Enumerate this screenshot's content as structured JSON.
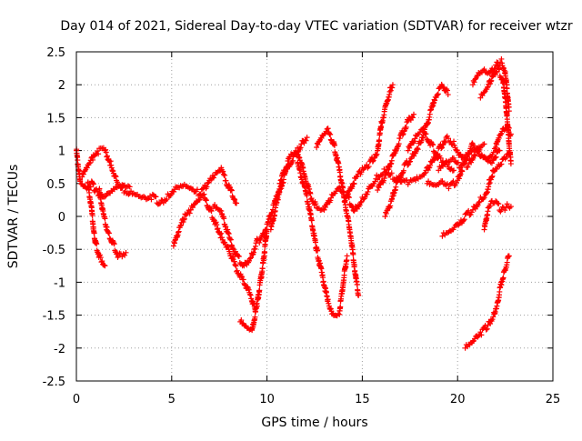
{
  "chart_data": {
    "type": "scatter",
    "title": "Day 014 of 2021, Sidereal Day-to-day VTEC variation (SDTVAR) for receiver wtzr",
    "xlabel": "GPS time / hours",
    "ylabel": "SDTVAR / TECUs",
    "xlim": [
      0,
      25
    ],
    "ylim": [
      -2.5,
      2.5
    ],
    "grid": true,
    "marker": "+",
    "xticks": [
      0,
      5,
      10,
      15,
      20,
      25
    ],
    "yticks": [
      2.5,
      2,
      1.5,
      1,
      0.5,
      0,
      -0.5,
      -1,
      -1.5,
      -2,
      -2.5
    ],
    "xtick_labels": [
      "0",
      "5",
      "10",
      "15",
      "20",
      "25"
    ],
    "ytick_labels": [
      "2.5",
      "2",
      "1.5",
      "1",
      "0.5",
      "0",
      "-0.5",
      "-1",
      "-1.5",
      "-2",
      "-2.5"
    ],
    "series": [
      {
        "name": "SDTVAR",
        "color": "#ff0000",
        "tracks": [
          [
            [
              0,
              1.0
            ],
            [
              0.2,
              0.5
            ],
            [
              0.5,
              0.4
            ],
            [
              0.8,
              0.5
            ],
            [
              1.0,
              0.4
            ],
            [
              1.3,
              0.3
            ],
            [
              1.6,
              0.35
            ],
            [
              2.0,
              0.45
            ],
            [
              2.4,
              0.5
            ],
            [
              2.8,
              0.45
            ]
          ],
          [
            [
              0.3,
              0.6
            ],
            [
              0.6,
              0.75
            ],
            [
              0.9,
              0.9
            ],
            [
              1.2,
              1.0
            ],
            [
              1.5,
              1.0
            ],
            [
              1.8,
              0.8
            ],
            [
              2.1,
              0.55
            ],
            [
              2.5,
              0.4
            ],
            [
              2.8,
              0.35
            ]
          ],
          [
            [
              0.6,
              0.5
            ],
            [
              0.8,
              0.1
            ],
            [
              0.9,
              -0.2
            ],
            [
              1.0,
              -0.4
            ],
            [
              1.2,
              -0.6
            ],
            [
              1.5,
              -0.75
            ]
          ],
          [
            [
              1.2,
              0.4
            ],
            [
              1.4,
              0.05
            ],
            [
              1.6,
              -0.2
            ],
            [
              1.9,
              -0.4
            ],
            [
              2.2,
              -0.6
            ],
            [
              2.6,
              -0.55
            ]
          ],
          [
            [
              2.8,
              0.35
            ],
            [
              3.2,
              0.3
            ],
            [
              3.6,
              0.25
            ],
            [
              4.0,
              0.3
            ],
            [
              4.4,
              0.2
            ],
            [
              4.8,
              0.3
            ],
            [
              5.2,
              0.45
            ],
            [
              5.6,
              0.5
            ],
            [
              6.0,
              0.45
            ],
            [
              6.4,
              0.35
            ],
            [
              6.8,
              0.45
            ],
            [
              7.2,
              0.6
            ],
            [
              7.6,
              0.7
            ],
            [
              8.0,
              0.45
            ],
            [
              8.4,
              0.2
            ]
          ],
          [
            [
              6.0,
              0.1
            ],
            [
              6.3,
              0.2
            ],
            [
              6.7,
              0.3
            ],
            [
              7.0,
              0.1
            ],
            [
              7.3,
              -0.1
            ],
            [
              7.6,
              -0.3
            ],
            [
              8.0,
              -0.5
            ],
            [
              8.4,
              -0.8
            ],
            [
              8.8,
              -1.0
            ],
            [
              9.2,
              -1.25
            ],
            [
              9.4,
              -1.45
            ]
          ],
          [
            [
              7.2,
              0.15
            ],
            [
              7.6,
              0.05
            ],
            [
              8.0,
              -0.3
            ],
            [
              8.4,
              -0.6
            ],
            [
              8.8,
              -0.75
            ],
            [
              9.2,
              -0.6
            ],
            [
              9.5,
              -0.35
            ]
          ],
          [
            [
              5.1,
              -0.45
            ],
            [
              5.4,
              -0.2
            ],
            [
              5.7,
              0.0
            ],
            [
              6.0,
              0.1
            ]
          ],
          [
            [
              8.6,
              -1.6
            ],
            [
              8.9,
              -1.7
            ],
            [
              9.2,
              -1.75
            ],
            [
              9.5,
              -1.3
            ],
            [
              9.8,
              -0.7
            ],
            [
              10.0,
              -0.2
            ]
          ],
          [
            [
              9.6,
              -0.4
            ],
            [
              10.0,
              -0.15
            ],
            [
              10.4,
              0.2
            ],
            [
              10.8,
              0.6
            ],
            [
              11.2,
              0.9
            ],
            [
              11.6,
              1.0
            ],
            [
              12.0,
              0.6
            ],
            [
              12.3,
              0.3
            ],
            [
              12.6,
              0.15
            ],
            [
              13.0,
              0.1
            ]
          ],
          [
            [
              10.2,
              -0.2
            ],
            [
              10.6,
              0.3
            ],
            [
              11.0,
              0.7
            ],
            [
              11.4,
              0.9
            ],
            [
              11.8,
              1.1
            ],
            [
              12.1,
              1.2
            ]
          ],
          [
            [
              11.6,
              0.8
            ],
            [
              12.0,
              0.4
            ],
            [
              12.3,
              0.0
            ],
            [
              12.6,
              -0.5
            ],
            [
              12.9,
              -0.9
            ],
            [
              13.2,
              -1.3
            ],
            [
              13.5,
              -1.5
            ],
            [
              13.8,
              -1.45
            ],
            [
              14.0,
              -1.0
            ],
            [
              14.2,
              -0.6
            ]
          ],
          [
            [
              12.6,
              1.05
            ],
            [
              12.9,
              1.2
            ],
            [
              13.2,
              1.3
            ],
            [
              13.5,
              1.1
            ],
            [
              13.8,
              0.7
            ],
            [
              14.1,
              0.2
            ],
            [
              14.4,
              -0.3
            ],
            [
              14.6,
              -0.8
            ],
            [
              14.8,
              -1.2
            ]
          ],
          [
            [
              13.0,
              0.1
            ],
            [
              13.4,
              0.3
            ],
            [
              13.8,
              0.4
            ],
            [
              14.2,
              0.3
            ],
            [
              14.6,
              0.1
            ],
            [
              15.0,
              0.25
            ],
            [
              15.4,
              0.45
            ],
            [
              15.8,
              0.6
            ],
            [
              16.2,
              0.7
            ],
            [
              16.6,
              0.6
            ],
            [
              17.0,
              0.55
            ],
            [
              17.4,
              0.5
            ],
            [
              17.8,
              0.55
            ]
          ],
          [
            [
              14.2,
              0.3
            ],
            [
              14.6,
              0.55
            ],
            [
              15.0,
              0.7
            ],
            [
              15.4,
              0.8
            ],
            [
              15.8,
              1.0
            ],
            [
              16.0,
              1.4
            ],
            [
              16.3,
              1.75
            ],
            [
              16.5,
              1.95
            ],
            [
              16.6,
              2.0
            ]
          ],
          [
            [
              15.8,
              0.4
            ],
            [
              16.2,
              0.6
            ],
            [
              16.6,
              0.9
            ],
            [
              17.0,
              1.2
            ],
            [
              17.4,
              1.45
            ],
            [
              17.7,
              1.55
            ]
          ],
          [
            [
              16.2,
              0.0
            ],
            [
              16.5,
              0.2
            ],
            [
              16.8,
              0.5
            ],
            [
              17.2,
              0.75
            ],
            [
              17.6,
              0.9
            ],
            [
              18.0,
              1.1
            ],
            [
              18.4,
              1.4
            ],
            [
              18.8,
              1.8
            ],
            [
              19.2,
              2.0
            ],
            [
              19.5,
              1.85
            ]
          ],
          [
            [
              17.4,
              1.0
            ],
            [
              17.8,
              1.2
            ],
            [
              18.2,
              1.3
            ],
            [
              18.6,
              1.1
            ],
            [
              19.0,
              0.9
            ],
            [
              19.4,
              0.8
            ],
            [
              19.8,
              0.7
            ]
          ],
          [
            [
              17.8,
              0.55
            ],
            [
              18.2,
              0.6
            ],
            [
              18.6,
              0.8
            ],
            [
              19.0,
              1.0
            ],
            [
              19.4,
              1.2
            ],
            [
              19.8,
              1.1
            ],
            [
              20.2,
              0.9
            ],
            [
              20.6,
              1.0
            ],
            [
              21.0,
              1.05
            ],
            [
              21.4,
              1.1
            ]
          ],
          [
            [
              18.4,
              0.5
            ],
            [
              18.8,
              0.45
            ],
            [
              19.2,
              0.5
            ],
            [
              19.6,
              0.45
            ],
            [
              20.0,
              0.55
            ],
            [
              20.4,
              0.85
            ],
            [
              20.8,
              1.1
            ],
            [
              21.2,
              0.95
            ],
            [
              21.6,
              0.9
            ],
            [
              22.0,
              1.0
            ]
          ],
          [
            [
              19.0,
              0.7
            ],
            [
              19.4,
              0.8
            ],
            [
              19.8,
              0.85
            ],
            [
              20.2,
              0.75
            ],
            [
              20.6,
              0.8
            ],
            [
              21.0,
              1.0
            ],
            [
              21.4,
              0.9
            ],
            [
              21.8,
              0.85
            ],
            [
              22.2,
              1.0
            ]
          ],
          [
            [
              19.2,
              -0.3
            ],
            [
              19.6,
              -0.25
            ],
            [
              20.0,
              -0.15
            ],
            [
              20.4,
              0.0
            ],
            [
              20.8,
              0.1
            ],
            [
              21.2,
              0.25
            ],
            [
              21.5,
              0.35
            ],
            [
              21.7,
              0.55
            ],
            [
              21.9,
              0.7
            ],
            [
              22.2,
              0.8
            ],
            [
              22.5,
              0.9
            ],
            [
              22.7,
              0.95
            ]
          ],
          [
            [
              21.4,
              -0.2
            ],
            [
              21.6,
              0.1
            ],
            [
              21.8,
              0.2
            ],
            [
              22.0,
              0.2
            ],
            [
              22.3,
              0.1
            ],
            [
              22.6,
              0.15
            ],
            [
              22.8,
              0.15
            ]
          ],
          [
            [
              20.4,
              -2.0
            ],
            [
              20.7,
              -1.95
            ],
            [
              21.0,
              -1.85
            ],
            [
              21.3,
              -1.75
            ],
            [
              21.6,
              -1.65
            ],
            [
              21.9,
              -1.5
            ],
            [
              22.1,
              -1.3
            ],
            [
              22.3,
              -1.0
            ],
            [
              22.5,
              -0.8
            ],
            [
              22.7,
              -0.6
            ]
          ],
          [
            [
              20.8,
              2.0
            ],
            [
              21.1,
              2.15
            ],
            [
              21.4,
              2.2
            ],
            [
              21.7,
              2.15
            ],
            [
              22.0,
              2.3
            ],
            [
              22.3,
              2.35
            ],
            [
              22.5,
              2.2
            ],
            [
              22.6,
              1.9
            ],
            [
              22.7,
              1.6
            ]
          ],
          [
            [
              21.2,
              1.8
            ],
            [
              21.5,
              1.9
            ],
            [
              21.8,
              2.1
            ],
            [
              22.1,
              2.25
            ],
            [
              22.4,
              2.05
            ],
            [
              22.6,
              1.5
            ],
            [
              22.7,
              1.1
            ],
            [
              22.8,
              0.8
            ]
          ],
          [
            [
              22.0,
              1.05
            ],
            [
              22.2,
              1.2
            ],
            [
              22.4,
              1.3
            ],
            [
              22.6,
              1.35
            ],
            [
              22.8,
              1.25
            ]
          ]
        ]
      }
    ]
  }
}
